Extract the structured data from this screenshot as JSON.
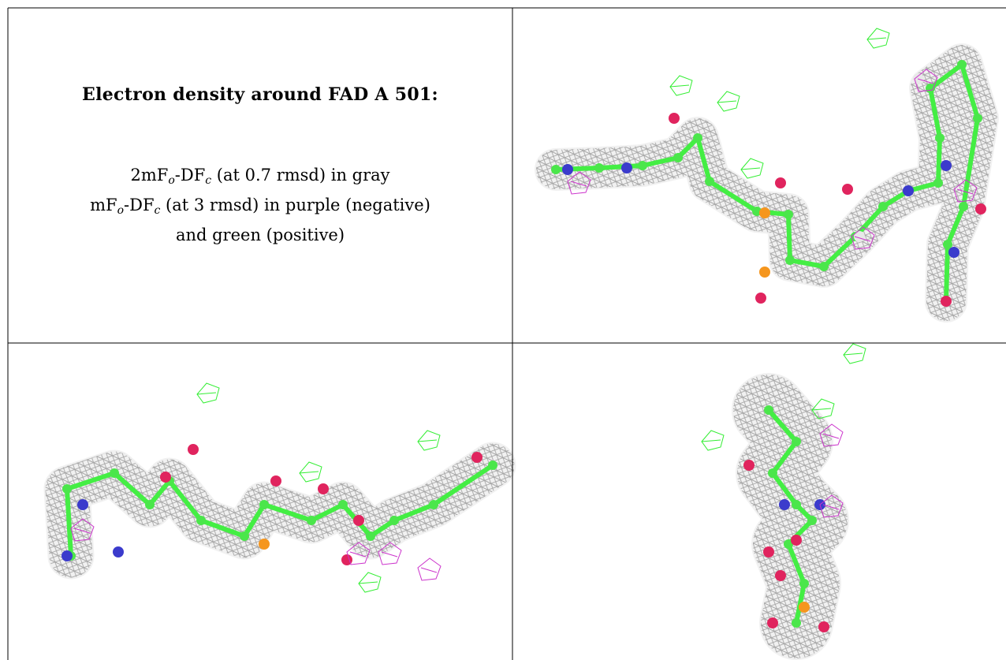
{
  "caption": {
    "title": "Electron density around FAD A 501:",
    "lines": [
      [
        {
          "text": "2mF"
        },
        {
          "sub": "o"
        },
        {
          "text": "-DF"
        },
        {
          "sub": "c"
        },
        {
          "text": " (at 0.7 rmsd) in gray"
        }
      ],
      [
        {
          "text": "mF"
        },
        {
          "sub": "o"
        },
        {
          "text": "-DF"
        },
        {
          "sub": "c"
        },
        {
          "text": " (at 3 rmsd) in purple (negative)"
        }
      ],
      [
        {
          "text": "and green (positive)"
        }
      ]
    ]
  }
}
